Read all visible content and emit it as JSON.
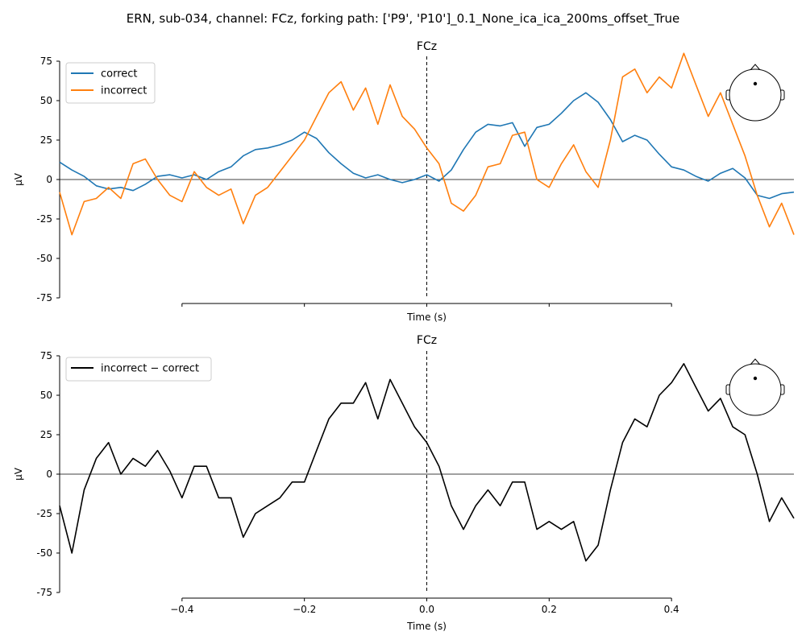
{
  "figure": {
    "suptitle": "ERN, sub-034, channel: FCz, forking path: ['P9', 'P10']_0.1_None_ica_ica_200ms_offset_True"
  },
  "chart_data": [
    {
      "type": "line",
      "title": "FCz",
      "xlabel": "Time (s)",
      "ylabel": "µV",
      "xlim": [
        -0.6,
        0.6
      ],
      "ylim": [
        -75,
        75
      ],
      "yticks": [
        -75,
        -50,
        -25,
        0,
        25,
        50,
        75
      ],
      "xticks": [
        -0.4,
        -0.2,
        0.0,
        0.2,
        0.4
      ],
      "xtick_labels_visible": false,
      "hline_at": 0,
      "vline_at": 0,
      "legend": "top-left",
      "inset": "head-topomap with FCz sensor dot",
      "x": [
        -0.6,
        -0.58,
        -0.56,
        -0.54,
        -0.52,
        -0.5,
        -0.48,
        -0.46,
        -0.44,
        -0.42,
        -0.4,
        -0.38,
        -0.36,
        -0.34,
        -0.32,
        -0.3,
        -0.28,
        -0.26,
        -0.24,
        -0.22,
        -0.2,
        -0.18,
        -0.16,
        -0.14,
        -0.12,
        -0.1,
        -0.08,
        -0.06,
        -0.04,
        -0.02,
        0.0,
        0.02,
        0.04,
        0.06,
        0.08,
        0.1,
        0.12,
        0.14,
        0.16,
        0.18,
        0.2,
        0.22,
        0.24,
        0.26,
        0.28,
        0.3,
        0.32,
        0.34,
        0.36,
        0.38,
        0.4,
        0.42,
        0.44,
        0.46,
        0.48,
        0.5,
        0.52,
        0.54,
        0.56,
        0.58,
        0.6
      ],
      "series": [
        {
          "name": "correct",
          "color": "#1f77b4",
          "values": [
            11,
            6,
            2,
            -4,
            -6,
            -5,
            -7,
            -3,
            2,
            3,
            1,
            3,
            0,
            5,
            8,
            15,
            19,
            20,
            22,
            25,
            30,
            26,
            17,
            10,
            4,
            1,
            3,
            0,
            -2,
            0,
            3,
            -1,
            6,
            19,
            30,
            35,
            34,
            36,
            21,
            33,
            35,
            42,
            50,
            55,
            49,
            38,
            24,
            28,
            25,
            16,
            8,
            6,
            2,
            -1,
            4,
            7,
            1,
            -10,
            -12,
            -9,
            -8
          ]
        },
        {
          "name": "incorrect",
          "color": "#ff7f0e",
          "values": [
            -8,
            -35,
            -14,
            -12,
            -5,
            -12,
            10,
            13,
            0,
            -10,
            -14,
            5,
            -5,
            -10,
            -6,
            -28,
            -10,
            -5,
            5,
            15,
            25,
            40,
            55,
            62,
            44,
            58,
            35,
            60,
            40,
            32,
            20,
            10,
            -15,
            -20,
            -10,
            8,
            10,
            28,
            30,
            0,
            -5,
            10,
            22,
            5,
            -5,
            25,
            65,
            70,
            55,
            65,
            58,
            80,
            60,
            40,
            55,
            35,
            15,
            -10,
            -30,
            -15,
            -35
          ]
        }
      ]
    },
    {
      "type": "line",
      "title": "FCz",
      "xlabel": "Time (s)",
      "ylabel": "µV",
      "xlim": [
        -0.6,
        0.6
      ],
      "ylim": [
        -75,
        75
      ],
      "yticks": [
        -75,
        -50,
        -25,
        0,
        25,
        50,
        75
      ],
      "xticks": [
        -0.4,
        -0.2,
        0.0,
        0.2,
        0.4
      ],
      "xtick_labels_visible": true,
      "hline_at": 0,
      "vline_at": 0,
      "legend": "top-left",
      "inset": "head-topomap with FCz sensor dot",
      "x": [
        -0.6,
        -0.58,
        -0.56,
        -0.54,
        -0.52,
        -0.5,
        -0.48,
        -0.46,
        -0.44,
        -0.42,
        -0.4,
        -0.38,
        -0.36,
        -0.34,
        -0.32,
        -0.3,
        -0.28,
        -0.26,
        -0.24,
        -0.22,
        -0.2,
        -0.18,
        -0.16,
        -0.14,
        -0.12,
        -0.1,
        -0.08,
        -0.06,
        -0.04,
        -0.02,
        0.0,
        0.02,
        0.04,
        0.06,
        0.08,
        0.1,
        0.12,
        0.14,
        0.16,
        0.18,
        0.2,
        0.22,
        0.24,
        0.26,
        0.28,
        0.3,
        0.32,
        0.34,
        0.36,
        0.38,
        0.4,
        0.42,
        0.44,
        0.46,
        0.48,
        0.5,
        0.52,
        0.54,
        0.56,
        0.58,
        0.6
      ],
      "series": [
        {
          "name": "incorrect − correct",
          "color": "#000000",
          "values": [
            -20,
            -50,
            -10,
            10,
            20,
            0,
            10,
            5,
            15,
            2,
            -15,
            5,
            5,
            -15,
            -15,
            -40,
            -25,
            -20,
            -15,
            -5,
            -5,
            15,
            35,
            45,
            45,
            58,
            35,
            60,
            45,
            30,
            20,
            5,
            -20,
            -35,
            -20,
            -10,
            -20,
            -5,
            -5,
            -35,
            -30,
            -35,
            -30,
            -55,
            -45,
            -10,
            20,
            35,
            30,
            50,
            58,
            70,
            55,
            40,
            48,
            30,
            25,
            0,
            -30,
            -15,
            -28
          ]
        }
      ]
    }
  ]
}
